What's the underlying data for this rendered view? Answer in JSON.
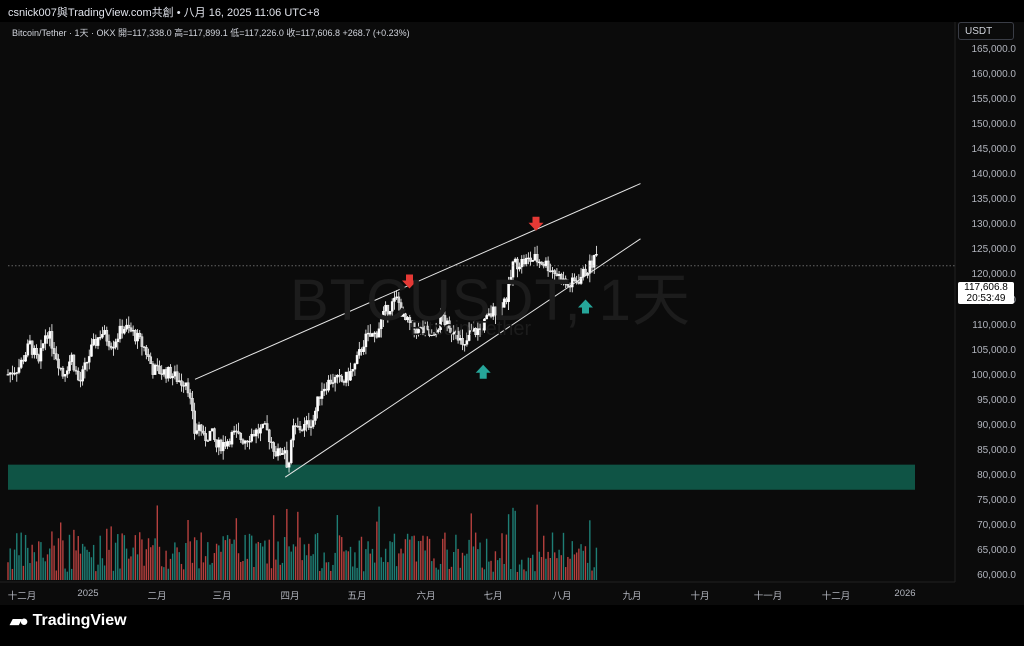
{
  "topbar": {
    "text": "csnick007與TradingView.com共創 • 八月 16, 2025 11:06 UTC+8"
  },
  "legend": {
    "text": "Bitcoin/Tether · 1天 · OKX  開=117,338.0  高=117,899.1  低=117,226.0  收=117,606.8  +268.7 (+0.23%)"
  },
  "watermark": {
    "symbol": "BTCUSDT, 1天",
    "name": "Bitcoin/Tether"
  },
  "currency_button": "USDT",
  "price_tag": {
    "price": "117,606.8",
    "countdown": "20:53:49"
  },
  "y_axis": [
    "165,000.0",
    "160,000.0",
    "155,000.0",
    "150,000.0",
    "145,000.0",
    "140,000.0",
    "135,000.0",
    "130,000.0",
    "125,000.0",
    "120,000.0",
    "115,000.0",
    "110,000.0",
    "105,000.0",
    "100,000.0",
    "95,000.0",
    "90,000.0",
    "85,000.0",
    "80,000.0",
    "75,000.0",
    "70,000.0",
    "65,000.0",
    "60,000.0"
  ],
  "x_axis": [
    "十二月",
    "2025",
    "二月",
    "三月",
    "四月",
    "五月",
    "六月",
    "七月",
    "八月",
    "九月",
    "十月",
    "十一月",
    "十二月",
    "2026"
  ],
  "logo": {
    "text": "TradingView"
  },
  "colors": {
    "up": "#26a69a",
    "down": "#ef5350",
    "candle": "#ffffff",
    "zone": "#0f5c4b",
    "arrow_down": "#e53935",
    "arrow_up": "#26a69a"
  },
  "chart_data": {
    "type": "candlestick",
    "symbol": "BTCUSDT",
    "interval": "1D",
    "ylim": [
      60000,
      167000
    ],
    "close_path": [
      [
        0,
        96000
      ],
      [
        10,
        97500
      ],
      [
        20,
        102000
      ],
      [
        28,
        98000
      ],
      [
        35,
        105000
      ],
      [
        42,
        101000
      ],
      [
        50,
        96000
      ],
      [
        58,
        99500
      ],
      [
        65,
        94000
      ],
      [
        75,
        100500
      ],
      [
        85,
        104500
      ],
      [
        95,
        102000
      ],
      [
        105,
        105500
      ],
      [
        115,
        104000
      ],
      [
        125,
        101000
      ],
      [
        132,
        97000
      ],
      [
        140,
        96500
      ],
      [
        148,
        96200
      ],
      [
        158,
        94500
      ],
      [
        163,
        95000
      ],
      [
        170,
        84500
      ],
      [
        175,
        86000
      ],
      [
        178,
        83000
      ],
      [
        185,
        84500
      ],
      [
        190,
        81500
      ],
      [
        198,
        82500
      ],
      [
        205,
        84000
      ],
      [
        215,
        83000
      ],
      [
        225,
        84500
      ],
      [
        235,
        85000
      ],
      [
        245,
        80000
      ],
      [
        252,
        81200
      ],
      [
        255,
        77000
      ],
      [
        260,
        85000
      ],
      [
        270,
        85500
      ],
      [
        278,
        87000
      ],
      [
        285,
        93000
      ],
      [
        295,
        95000
      ],
      [
        305,
        94500
      ],
      [
        315,
        97000
      ],
      [
        325,
        103000
      ],
      [
        335,
        104000
      ],
      [
        345,
        109000
      ],
      [
        355,
        111000
      ],
      [
        360,
        107000
      ],
      [
        370,
        105000
      ],
      [
        380,
        104500
      ],
      [
        388,
        103000
      ],
      [
        395,
        108000
      ],
      [
        402,
        104500
      ],
      [
        408,
        105500
      ],
      [
        415,
        100500
      ],
      [
        420,
        104000
      ],
      [
        430,
        105000
      ],
      [
        440,
        108000
      ],
      [
        448,
        110000
      ],
      [
        455,
        111500
      ],
      [
        460,
        118000
      ],
      [
        470,
        118500
      ],
      [
        480,
        119000
      ],
      [
        490,
        118000
      ],
      [
        500,
        116000
      ],
      [
        510,
        113500
      ],
      [
        520,
        115000
      ],
      [
        530,
        117500
      ],
      [
        537,
        120000
      ],
      [
        542,
        123000
      ],
      [
        545,
        118000
      ],
      [
        548,
        117600
      ]
    ],
    "channel_upper": {
      "start": [
        170,
        95000
      ],
      "end": [
        575,
        134000
      ]
    },
    "channel_lower": {
      "start": [
        252,
        75500
      ],
      "end": [
        575,
        123000
      ]
    },
    "support_zone": [
      73000,
      78000
    ],
    "markers": [
      {
        "type": "down-arrow",
        "x": 365,
        "price": 113500
      },
      {
        "type": "down-arrow",
        "x": 480,
        "price": 125000
      },
      {
        "type": "up-arrow",
        "x": 432,
        "price": 97500
      },
      {
        "type": "up-arrow",
        "x": 525,
        "price": 110500
      }
    ],
    "last_price": 117606.8
  }
}
